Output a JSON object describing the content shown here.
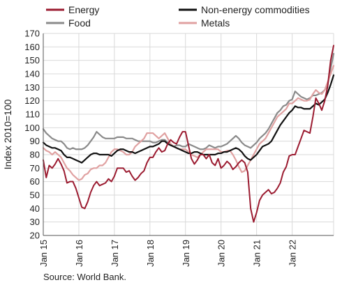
{
  "chart_data": {
    "type": "line",
    "ylabel": "Index 2010=100",
    "ylim": [
      20,
      170
    ],
    "yticks": [
      20,
      30,
      40,
      50,
      60,
      70,
      80,
      90,
      100,
      110,
      120,
      130,
      140,
      150,
      160,
      170
    ],
    "x_tick_labels": [
      "Jan 15",
      "Jan 16",
      "Jan 17",
      "Jan 18",
      "Jan 19",
      "Jan 20",
      "Jan 21",
      "Jan 22"
    ],
    "x_start": "Jan 15",
    "x_end": "Apr 22",
    "grid": true,
    "legend_placement": "top",
    "source": "Source: World Bank.",
    "series": [
      {
        "name": "Energy",
        "color": "#9b1b30",
        "width": 2,
        "values": [
          76,
          63,
          72,
          70,
          73,
          77,
          73,
          68,
          59,
          60,
          60,
          55,
          48,
          41,
          40,
          45,
          52,
          57,
          60,
          57,
          58,
          59,
          62,
          60,
          64,
          70,
          70,
          70,
          67,
          68,
          64,
          61,
          63,
          66,
          68,
          74,
          78,
          78,
          82,
          85,
          82,
          83,
          88,
          91,
          89,
          88,
          93,
          97,
          97,
          87,
          77,
          73,
          76,
          80,
          80,
          77,
          80,
          74,
          72,
          77,
          70,
          72,
          75,
          73,
          69,
          71,
          74,
          76,
          74,
          67,
          40,
          30,
          37,
          46,
          50,
          52,
          54,
          51,
          52,
          55,
          59,
          67,
          71,
          79,
          80,
          80,
          86,
          92,
          98,
          97,
          96,
          108,
          122,
          118,
          113,
          120,
          131,
          150,
          161
        ]
      },
      {
        "name": "Non-energy commodities",
        "color": "#111111",
        "width": 2.2,
        "values": [
          89,
          87,
          86,
          85,
          85,
          84,
          83,
          80,
          78,
          78,
          77,
          76,
          75,
          74,
          76,
          78,
          80,
          81,
          81,
          80,
          80,
          80,
          80,
          79,
          81,
          83,
          84,
          84,
          83,
          82,
          82,
          81,
          82,
          83,
          84,
          85,
          86,
          86,
          87,
          88,
          90,
          90,
          88,
          87,
          86,
          85,
          84,
          83,
          82,
          81,
          81,
          82,
          82,
          81,
          80,
          80,
          80,
          80,
          80,
          81,
          81,
          82,
          82,
          83,
          84,
          85,
          84,
          82,
          79,
          77,
          76,
          78,
          80,
          83,
          86,
          87,
          88,
          90,
          94,
          98,
          102,
          105,
          108,
          111,
          113,
          116,
          115,
          115,
          114,
          114,
          114,
          116,
          118,
          117,
          119,
          121,
          126,
          132,
          139
        ]
      },
      {
        "name": "Food",
        "color": "#8a8a8a",
        "width": 2.2,
        "values": [
          99,
          96,
          94,
          92,
          91,
          90,
          90,
          88,
          85,
          84,
          85,
          84,
          84,
          84,
          85,
          87,
          90,
          93,
          97,
          95,
          93,
          92,
          92,
          92,
          92,
          93,
          93,
          93,
          92,
          92,
          92,
          91,
          90,
          90,
          90,
          90,
          90,
          89,
          89,
          90,
          91,
          91,
          89,
          87,
          86,
          87,
          87,
          86,
          86,
          88,
          87,
          86,
          85,
          84,
          84,
          85,
          87,
          86,
          85,
          86,
          86,
          87,
          88,
          90,
          92,
          94,
          92,
          89,
          87,
          86,
          85,
          87,
          89,
          92,
          94,
          96,
          99,
          103,
          107,
          111,
          113,
          116,
          117,
          120,
          121,
          127,
          125,
          123,
          122,
          121,
          122,
          124,
          124,
          125,
          126,
          128,
          132,
          144,
          155
        ]
      },
      {
        "name": "Metals",
        "color": "#e0a1a1",
        "width": 2.2,
        "values": [
          85,
          83,
          82,
          80,
          82,
          80,
          78,
          74,
          70,
          68,
          65,
          63,
          61,
          62,
          65,
          66,
          69,
          70,
          70,
          72,
          72,
          74,
          78,
          82,
          84,
          84,
          83,
          82,
          80,
          80,
          82,
          86,
          88,
          90,
          92,
          96,
          96,
          96,
          94,
          92,
          94,
          96,
          92,
          88,
          86,
          85,
          84,
          84,
          84,
          82,
          80,
          79,
          78,
          80,
          82,
          84,
          84,
          84,
          84,
          84,
          82,
          82,
          83,
          83,
          80,
          76,
          71,
          67,
          68,
          72,
          76,
          80,
          84,
          88,
          90,
          92,
          96,
          100,
          104,
          108,
          110,
          112,
          114,
          118,
          118,
          120,
          122,
          121,
          120,
          120,
          121,
          125,
          128,
          126,
          125,
          128,
          134,
          140,
          146
        ]
      }
    ]
  }
}
